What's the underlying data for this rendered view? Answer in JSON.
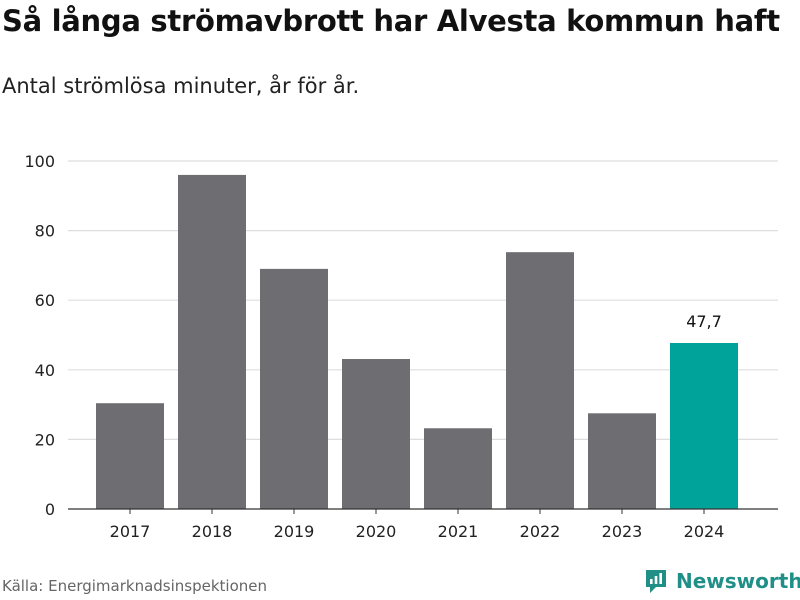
{
  "title": "Så långa strömavbrott har Alvesta kommun haft",
  "subtitle": "Antal strömlösa minuter, år för år.",
  "source": "Källa: Energimarknadsinspektionen",
  "brand": "Newsworthy",
  "colors": {
    "bar": "#6e6d72",
    "highlight": "#00a39a",
    "grid": "#dddddd",
    "axis": "#333333",
    "brand": "#1f8f88"
  },
  "chart_data": {
    "type": "bar",
    "title": "Så långa strömavbrott har Alvesta kommun haft",
    "subtitle": "Antal strömlösa minuter, år för år.",
    "xlabel": "",
    "ylabel": "",
    "categories": [
      "2017",
      "2018",
      "2019",
      "2020",
      "2021",
      "2022",
      "2023",
      "2024"
    ],
    "values": [
      30.4,
      96,
      69,
      43.1,
      23.2,
      73.8,
      27.5,
      47.7
    ],
    "highlight_index": 7,
    "data_labels": [
      {
        "index": 7,
        "text": "47,7"
      }
    ],
    "ylim": [
      0,
      100
    ],
    "yticks": [
      0,
      20,
      40,
      60,
      80,
      100
    ],
    "grid": true
  }
}
